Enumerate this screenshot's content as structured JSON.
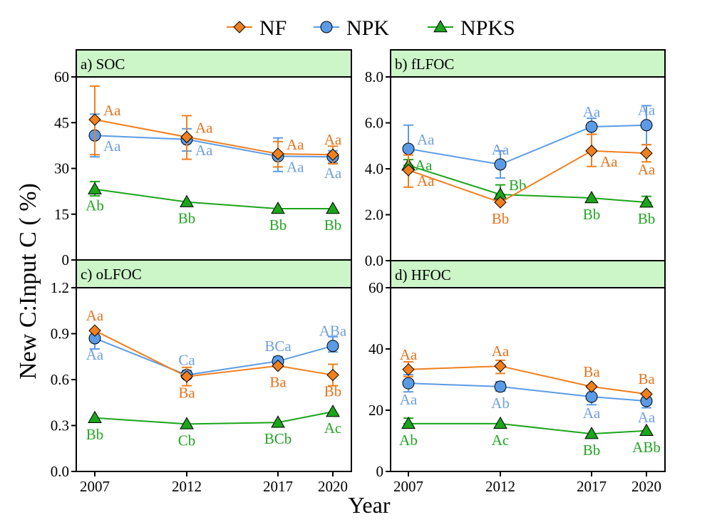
{
  "chart_data": {
    "type": "line",
    "x": [
      "2007",
      "2012",
      "2017",
      "2020"
    ],
    "x_values": [
      2007,
      2012,
      2017,
      2020
    ],
    "xlabel": "Year",
    "ylabel": "New C:Input C ( %)",
    "legend": {
      "placement": "top-center",
      "entries": [
        {
          "name": "NF",
          "marker": "diamond",
          "color": "#F07F1E"
        },
        {
          "name": "NPK",
          "marker": "circle",
          "color": "#5B9BE6"
        },
        {
          "name": "NPKS",
          "marker": "triangle",
          "color": "#1AA51A"
        }
      ]
    },
    "label_colors": {
      "NF": "#E8721C",
      "NPK": "#6FA0DE",
      "NPKS": "#22A522"
    },
    "header_color": "#CCF5C8",
    "panels": [
      {
        "id": "a",
        "title": "a) SOC",
        "ylim": [
          0,
          60
        ],
        "yticks": [
          "0",
          "15",
          "30",
          "45",
          "60"
        ],
        "ytick_values": [
          0,
          15,
          30,
          45,
          60
        ],
        "series": [
          {
            "name": "NF",
            "values": [
              46.0,
              40.3,
              34.8,
              34.5
            ],
            "err_low": [
              34.5,
              33.0,
              30.5,
              31.5
            ],
            "err_high": [
              57.0,
              47.3,
              38.8,
              37.3
            ],
            "labels": [
              "Aa",
              "Aa",
              "Aa",
              "Aa"
            ],
            "label_pos": [
              "right-up",
              "right-up",
              "right-up",
              "up"
            ]
          },
          {
            "name": "NPK",
            "values": [
              40.8,
              39.5,
              34.0,
              33.8
            ],
            "err_low": [
              33.8,
              35.7,
              29.0,
              31.8
            ],
            "err_high": [
              47.8,
              43.0,
              40.0,
              35.8
            ],
            "labels": [
              "Aa",
              "Aa",
              "Aa",
              "Aa"
            ],
            "label_pos": [
              "right-down",
              "right-down",
              "right-down",
              "down"
            ]
          },
          {
            "name": "NPKS",
            "values": [
              23.2,
              19.0,
              16.8,
              16.8
            ],
            "err_low": [
              21.0,
              19.0,
              16.8,
              16.8
            ],
            "err_high": [
              25.7,
              19.0,
              16.8,
              16.8
            ],
            "labels": [
              "Ab",
              "Bb",
              "Bb",
              "Bb"
            ],
            "label_pos": [
              "down",
              "down",
              "down",
              "down"
            ]
          }
        ]
      },
      {
        "id": "b",
        "title": "b) fLFOC",
        "ylim": [
          0,
          8.0
        ],
        "yticks": [
          "0.0",
          "2.0",
          "4.0",
          "6.0",
          "8.0"
        ],
        "ytick_values": [
          0,
          2,
          4,
          6,
          8
        ],
        "series": [
          {
            "name": "NF",
            "values": [
              3.94,
              2.54,
              4.78,
              4.68
            ],
            "err_low": [
              3.2,
              2.54,
              4.1,
              4.3
            ],
            "err_high": [
              4.6,
              2.54,
              5.5,
              5.05
            ],
            "labels": [
              "Aa",
              "Bb",
              "Aa",
              "Aa"
            ],
            "label_pos": [
              "right-down",
              "down",
              "right-down",
              "down"
            ]
          },
          {
            "name": "NPK",
            "values": [
              4.87,
              4.19,
              5.83,
              5.9
            ],
            "err_low": [
              4.87,
              3.6,
              5.5,
              5.05
            ],
            "err_high": [
              5.9,
              4.78,
              6.2,
              6.75
            ],
            "labels": [
              "Aa",
              "Aa",
              "Aa",
              "Aa"
            ],
            "label_pos": [
              "right-up",
              "up",
              "up",
              "up"
            ]
          },
          {
            "name": "NPKS",
            "values": [
              4.15,
              2.88,
              2.73,
              2.54
            ],
            "err_low": [
              4.15,
              2.88,
              2.73,
              2.54
            ],
            "err_high": [
              4.4,
              3.3,
              2.73,
              2.8
            ],
            "labels": [
              "Aa",
              "Bb",
              "Bb",
              "Bb"
            ],
            "label_pos": [
              "right",
              "right-up",
              "down",
              "down"
            ]
          }
        ]
      },
      {
        "id": "c",
        "title": "c) oLFOC",
        "ylim": [
          0,
          1.2
        ],
        "yticks": [
          "0.0",
          "0.3",
          "0.6",
          "0.9",
          "1.2"
        ],
        "ytick_values": [
          0,
          0.3,
          0.6,
          0.9,
          1.2
        ],
        "series": [
          {
            "name": "NF",
            "values": [
              0.92,
              0.62,
              0.69,
              0.63
            ],
            "err_low": [
              0.92,
              0.56,
              0.69,
              0.56
            ],
            "err_high": [
              0.92,
              0.68,
              0.69,
              0.7
            ],
            "labels": [
              "Aa",
              "Ba",
              "Ba",
              "Bb"
            ],
            "label_pos": [
              "up",
              "down",
              "down",
              "down"
            ]
          },
          {
            "name": "NPK",
            "values": [
              0.87,
              0.63,
              0.72,
              0.82
            ],
            "err_low": [
              0.8,
              0.63,
              0.69,
              0.78
            ],
            "err_high": [
              0.92,
              0.66,
              0.75,
              0.88
            ],
            "labels": [
              "Aa",
              "Ca",
              "BCa",
              "ABa"
            ],
            "label_pos": [
              "down",
              "up",
              "up",
              "up"
            ]
          },
          {
            "name": "NPKS",
            "values": [
              0.35,
              0.31,
              0.32,
              0.39
            ],
            "err_low": [
              0.35,
              0.31,
              0.32,
              0.39
            ],
            "err_high": [
              0.35,
              0.31,
              0.32,
              0.39
            ],
            "labels": [
              "Bb",
              "Cb",
              "BCb",
              "Ac"
            ],
            "label_pos": [
              "down",
              "down",
              "down",
              "down"
            ]
          }
        ]
      },
      {
        "id": "d",
        "title": "d) HFOC",
        "ylim": [
          0,
          60
        ],
        "yticks": [
          "0",
          "20",
          "40",
          "60"
        ],
        "ytick_values": [
          0,
          20,
          40,
          60
        ],
        "series": [
          {
            "name": "NF",
            "values": [
              33.3,
              34.4,
              27.7,
              25.3
            ],
            "err_low": [
              31.0,
              32.0,
              27.7,
              25.3
            ],
            "err_high": [
              35.8,
              36.3,
              27.7,
              25.3
            ],
            "labels": [
              "Aa",
              "Aa",
              "Ba",
              "Ba"
            ],
            "label_pos": [
              "up",
              "up",
              "up",
              "up"
            ]
          },
          {
            "name": "NPK",
            "values": [
              28.8,
              27.7,
              24.4,
              23.0
            ],
            "err_low": [
              26.0,
              26.2,
              21.8,
              20.8
            ],
            "err_high": [
              31.6,
              29.3,
              24.4,
              23.0
            ],
            "labels": [
              "Aa",
              "Ab",
              "Aa",
              "Aa"
            ],
            "label_pos": [
              "down",
              "down",
              "down",
              "down"
            ]
          },
          {
            "name": "NPKS",
            "values": [
              15.6,
              15.6,
              12.3,
              13.3
            ],
            "err_low": [
              15.6,
              15.6,
              12.3,
              13.3
            ],
            "err_high": [
              17.4,
              15.6,
              12.3,
              13.3
            ],
            "labels": [
              "Ab",
              "Ac",
              "Bb",
              "ABb"
            ],
            "label_pos": [
              "down",
              "down",
              "down",
              "down"
            ]
          }
        ]
      }
    ]
  }
}
